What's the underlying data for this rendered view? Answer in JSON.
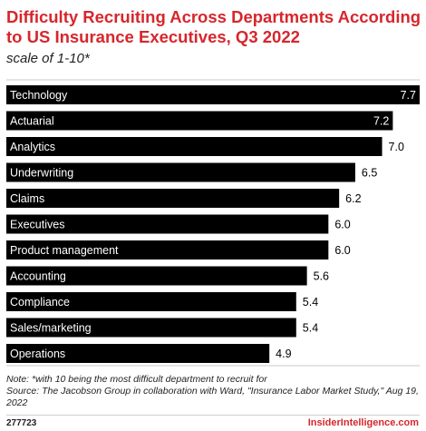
{
  "title": "Difficulty Recruiting Across Departments According to US Insurance Executives, Q3 2022",
  "subtitle": "scale of 1-10*",
  "chart_data": {
    "type": "bar",
    "orientation": "horizontal",
    "categories": [
      "Technology",
      "Actuarial",
      "Analytics",
      "Underwriting",
      "Claims",
      "Executives",
      "Product management",
      "Accounting",
      "Compliance",
      "Sales/marketing",
      "Operations"
    ],
    "values": [
      7.7,
      7.2,
      7.0,
      6.5,
      6.2,
      6.0,
      6.0,
      5.6,
      5.4,
      5.4,
      4.9
    ],
    "value_labels": [
      "7.7",
      "7.2",
      "7.0",
      "6.5",
      "6.2",
      "6.0",
      "6.0",
      "5.6",
      "5.4",
      "5.4",
      "4.9"
    ],
    "xlim": [
      0,
      7.7
    ],
    "bar_color": "#000000",
    "grid": false
  },
  "footer": {
    "note": "Note: *with 10 being the most difficult department to recruit for",
    "source": "Source: The Jacobson Group in collaboration with Ward, \"Insurance Labor Market Study,\" Aug 19, 2022",
    "code": "277723",
    "brand": "InsiderIntelligence.com"
  },
  "colors": {
    "accent": "#d7262c",
    "bar": "#000000"
  }
}
